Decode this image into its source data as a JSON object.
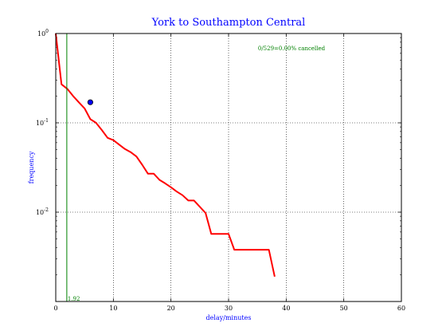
{
  "chart_data": {
    "type": "line",
    "title": "York to Southampton Central",
    "xlabel": "delay/minutes",
    "ylabel": "frequency",
    "x_scale": "linear",
    "y_scale": "log",
    "xlim": [
      0,
      60
    ],
    "ylim": [
      0.001,
      1
    ],
    "grid": true,
    "x_ticks": [
      0,
      10,
      20,
      30,
      40,
      50,
      60
    ],
    "x_tick_labels": [
      "0",
      "10",
      "20",
      "30",
      "40",
      "50",
      "60"
    ],
    "y_ticks": [
      {
        "value": 1,
        "base": "10",
        "exp": "0"
      },
      {
        "value": 0.1,
        "base": "10",
        "exp": "-1"
      },
      {
        "value": 0.01,
        "base": "10",
        "exp": "-2"
      }
    ],
    "annotation": "0/529=0.00% cancelled",
    "vline": {
      "x": 1.92,
      "label": "1.92"
    },
    "marker": {
      "x": 6,
      "y": 0.17
    },
    "series": [
      {
        "x": [
          0,
          1,
          2,
          3,
          4,
          5,
          6,
          7,
          8,
          9,
          10,
          11,
          12,
          13,
          14,
          15,
          16,
          17,
          18,
          19,
          20,
          21,
          22,
          23,
          24,
          25,
          26,
          27,
          28,
          29,
          30,
          31,
          32,
          33,
          34,
          35,
          36,
          37,
          38
        ],
        "y": [
          1.0,
          0.27,
          0.24,
          0.2,
          0.17,
          0.145,
          0.11,
          0.1,
          0.083,
          0.068,
          0.064,
          0.057,
          0.051,
          0.047,
          0.042,
          0.034,
          0.027,
          0.027,
          0.023,
          0.021,
          0.019,
          0.017,
          0.0155,
          0.0135,
          0.0135,
          0.0115,
          0.0098,
          0.0057,
          0.0057,
          0.0057,
          0.0057,
          0.0038,
          0.0038,
          0.0038,
          0.0038,
          0.0038,
          0.0038,
          0.0038,
          0.0019
        ]
      }
    ],
    "colors": {
      "line": "#ff0000",
      "title": "#0000ff",
      "axis_label": "#0000ff",
      "annotation": "#008000",
      "vline": "#008000",
      "marker_fill": "#0000ff",
      "grid": "#000000"
    }
  }
}
